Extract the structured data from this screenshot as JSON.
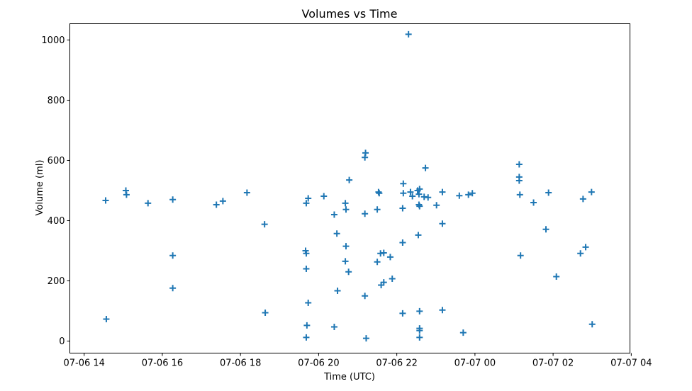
{
  "chart_data": {
    "type": "scatter",
    "title": "Volumes vs Time",
    "xlabel": "Time (UTC)",
    "ylabel": "Volume (ml)",
    "xlim": [
      "07-06 13:38",
      "07-07 03:58"
    ],
    "ylim": [
      -40,
      1054
    ],
    "xticks": [
      "07-06 14",
      "07-06 16",
      "07-06 18",
      "07-06 20",
      "07-06 22",
      "07-07 00",
      "07-07 02",
      "07-07 04"
    ],
    "yticks": [
      0,
      200,
      400,
      600,
      800,
      1000
    ],
    "grid": false,
    "marker": "+",
    "color": "#1f77b4",
    "points": [
      [
        "07-06 14:33",
        467
      ],
      [
        "07-06 14:34",
        73
      ],
      [
        "07-06 15:04",
        500
      ],
      [
        "07-06 15:05",
        486
      ],
      [
        "07-06 15:38",
        458
      ],
      [
        "07-06 16:16",
        470
      ],
      [
        "07-06 16:16",
        284
      ],
      [
        "07-06 16:16",
        176
      ],
      [
        "07-06 17:23",
        453
      ],
      [
        "07-06 17:33",
        465
      ],
      [
        "07-06 18:10",
        493
      ],
      [
        "07-06 18:37",
        388
      ],
      [
        "07-06 18:38",
        94
      ],
      [
        "07-06 19:40",
        300
      ],
      [
        "07-06 19:41",
        291
      ],
      [
        "07-06 19:41",
        240
      ],
      [
        "07-06 19:42",
        52
      ],
      [
        "07-06 19:41",
        12
      ],
      [
        "07-06 19:41",
        458
      ],
      [
        "07-06 19:44",
        474
      ],
      [
        "07-06 19:44",
        127
      ],
      [
        "07-06 20:08",
        481
      ],
      [
        "07-06 20:24",
        420
      ],
      [
        "07-06 20:28",
        357
      ],
      [
        "07-06 20:29",
        167
      ],
      [
        "07-06 20:24",
        47
      ],
      [
        "07-06 20:41",
        458
      ],
      [
        "07-06 20:42",
        437
      ],
      [
        "07-06 20:42",
        315
      ],
      [
        "07-06 20:41",
        265
      ],
      [
        "07-06 20:46",
        230
      ],
      [
        "07-06 20:47",
        535
      ],
      [
        "07-06 21:12",
        625
      ],
      [
        "07-06 21:11",
        610
      ],
      [
        "07-06 21:11",
        423
      ],
      [
        "07-06 21:11",
        150
      ],
      [
        "07-06 21:13",
        9
      ],
      [
        "07-06 21:30",
        437
      ],
      [
        "07-06 21:32",
        495
      ],
      [
        "07-06 21:33",
        491
      ],
      [
        "07-06 21:30",
        263
      ],
      [
        "07-06 21:35",
        291
      ],
      [
        "07-06 21:40",
        293
      ],
      [
        "07-06 21:36",
        186
      ],
      [
        "07-06 21:40",
        195
      ],
      [
        "07-06 21:50",
        279
      ],
      [
        "07-06 21:53",
        207
      ],
      [
        "07-06 22:09",
        441
      ],
      [
        "07-06 22:10",
        523
      ],
      [
        "07-06 22:10",
        491
      ],
      [
        "07-06 22:09",
        327
      ],
      [
        "07-06 22:09",
        92
      ],
      [
        "07-06 22:18",
        1019
      ],
      [
        "07-06 22:21",
        495
      ],
      [
        "07-06 22:24",
        481
      ],
      [
        "07-06 22:32",
        500
      ],
      [
        "07-06 22:35",
        505
      ],
      [
        "07-06 22:34",
        488
      ],
      [
        "07-06 22:33",
        352
      ],
      [
        "07-06 22:34",
        453
      ],
      [
        "07-06 22:35",
        448
      ],
      [
        "07-06 22:35",
        99
      ],
      [
        "07-06 22:35",
        42
      ],
      [
        "07-06 22:35",
        35
      ],
      [
        "07-06 22:35",
        12
      ],
      [
        "07-06 22:42",
        479
      ],
      [
        "07-06 22:48",
        477
      ],
      [
        "07-06 22:44",
        575
      ],
      [
        "07-06 23:01",
        451
      ],
      [
        "07-06 23:10",
        495
      ],
      [
        "07-06 23:10",
        390
      ],
      [
        "07-06 23:10",
        103
      ],
      [
        "07-06 23:36",
        483
      ],
      [
        "07-06 23:42",
        28
      ],
      [
        "07-06 23:50",
        486
      ],
      [
        "07-06 23:56",
        491
      ],
      [
        "07-07 01:08",
        587
      ],
      [
        "07-07 01:08",
        533
      ],
      [
        "07-07 01:08",
        545
      ],
      [
        "07-07 01:09",
        486
      ],
      [
        "07-07 01:10",
        284
      ],
      [
        "07-07 01:30",
        460
      ],
      [
        "07-07 01:49",
        371
      ],
      [
        "07-07 01:53",
        493
      ],
      [
        "07-07 02:05",
        214
      ],
      [
        "07-07 02:42",
        291
      ],
      [
        "07-07 02:46",
        472
      ],
      [
        "07-07 02:50",
        312
      ],
      [
        "07-07 02:59",
        495
      ],
      [
        "07-07 03:00",
        56
      ]
    ]
  }
}
